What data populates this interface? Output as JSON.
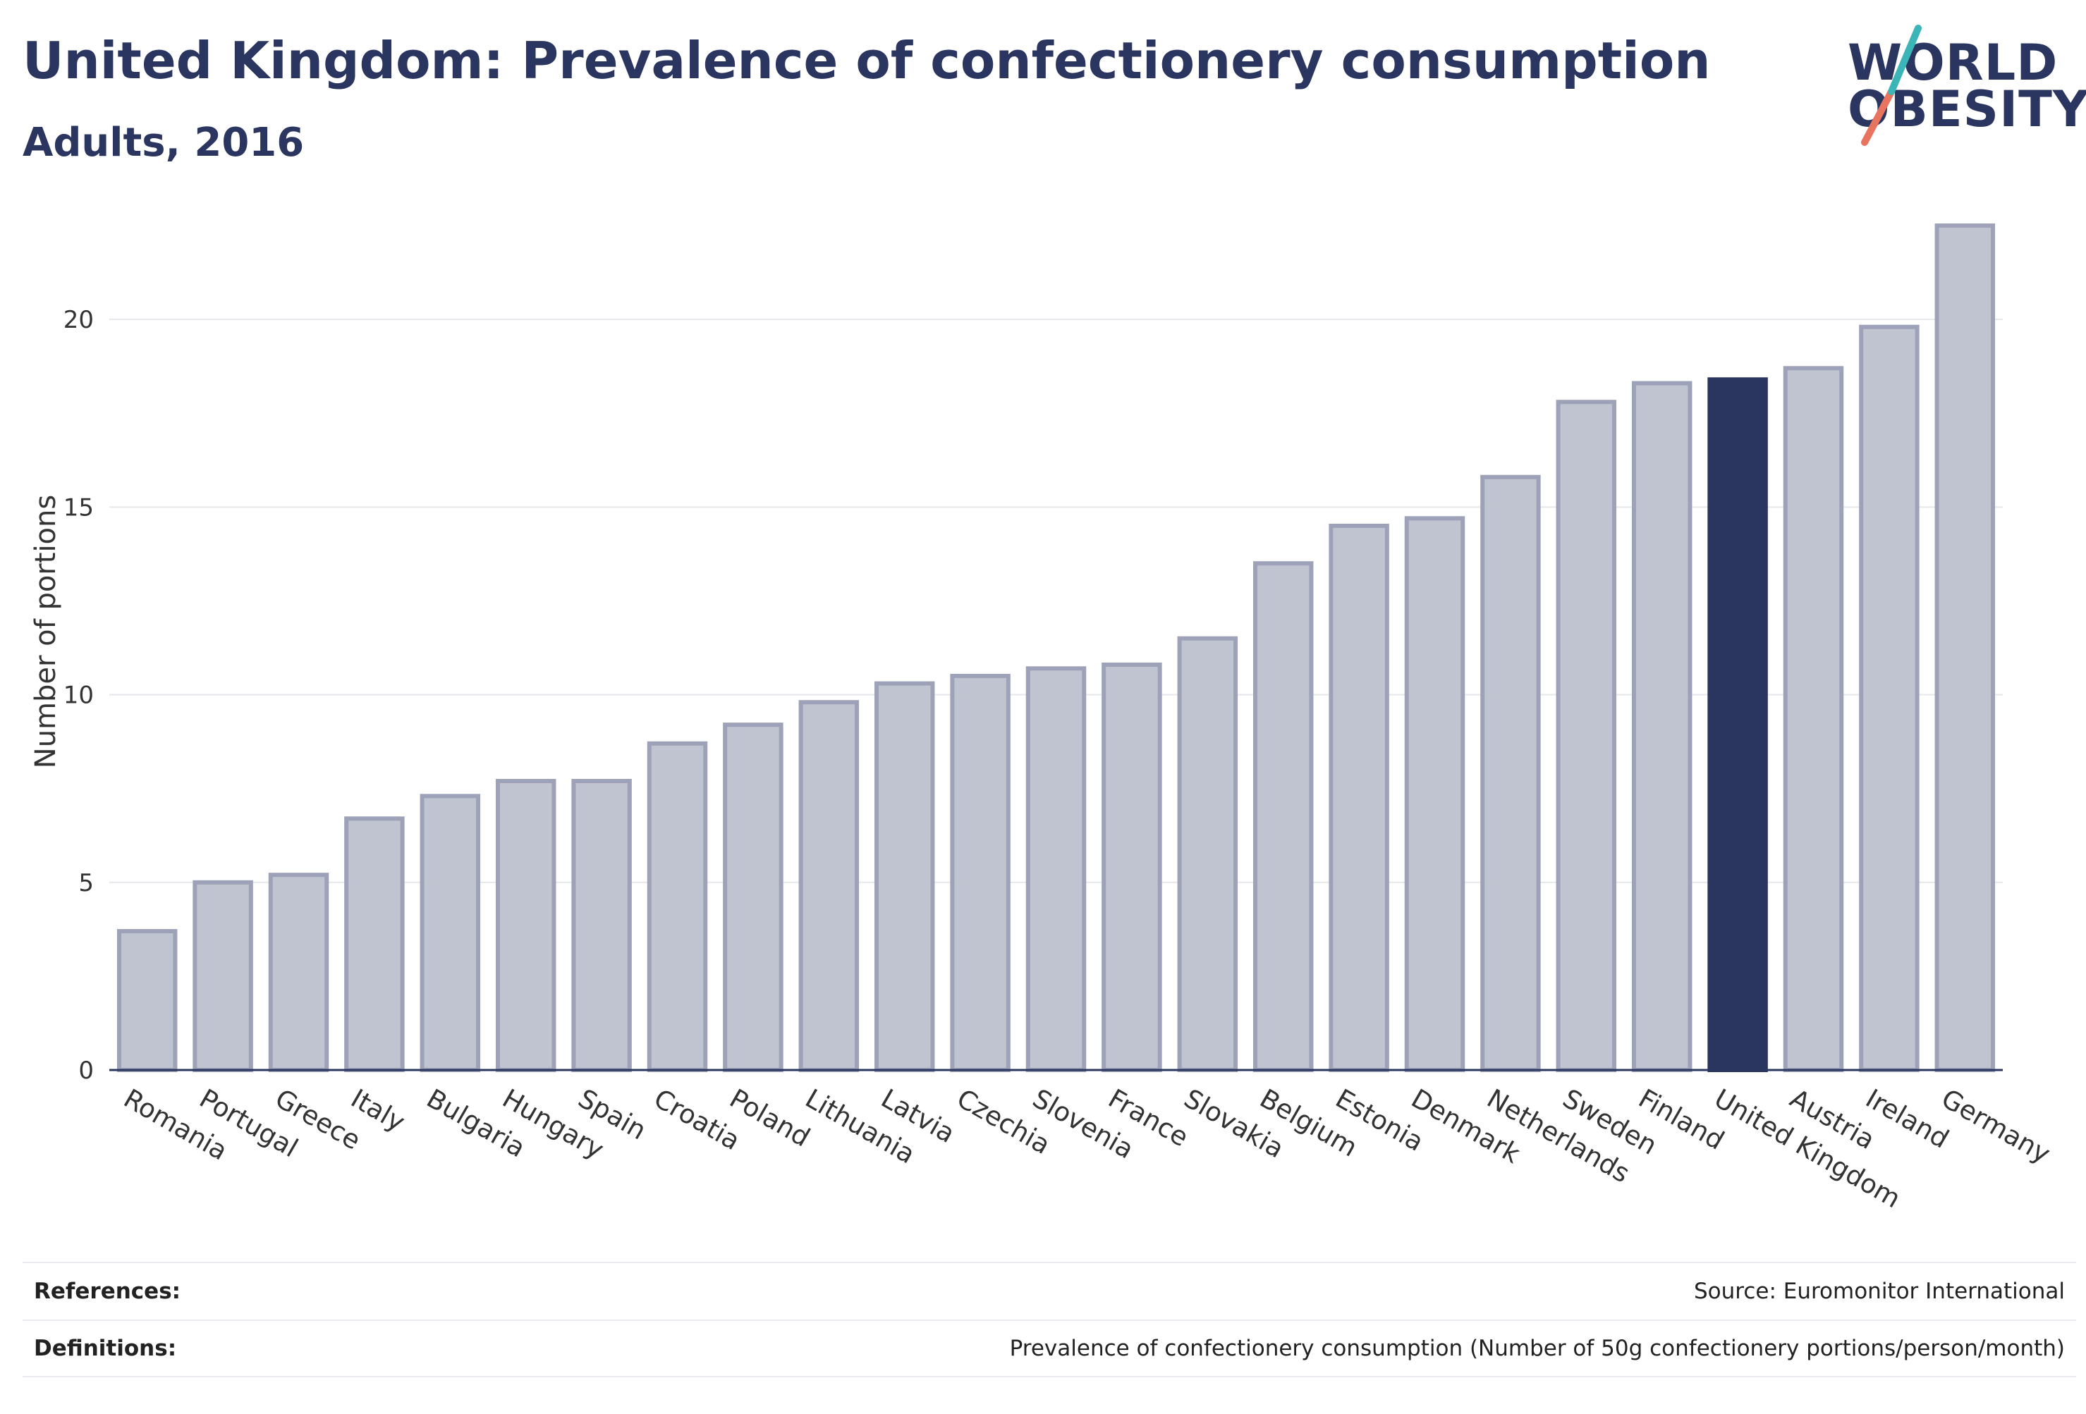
{
  "header": {
    "title": "United Kingdom: Prevalence of confectionery consumption",
    "subtitle": "Adults, 2016"
  },
  "logo": {
    "line1": "WORLD",
    "line2": "OBESITY"
  },
  "chart_data": {
    "type": "bar",
    "title": "United Kingdom: Prevalence of confectionery consumption",
    "subtitle": "Adults, 2016",
    "xlabel": "",
    "ylabel": "Number of portions",
    "ylim": [
      0,
      22.5
    ],
    "yticks": [
      0,
      5,
      10,
      15,
      20
    ],
    "grid": true,
    "highlight": "United Kingdom",
    "colors": {
      "bar": "#c0c3d0",
      "bar_border": "#9da2b8",
      "highlight": "#2a3560",
      "grid": "#e6e7eb",
      "axis": "#2a3560"
    },
    "categories": [
      "Romania",
      "Portugal",
      "Greece",
      "Italy",
      "Bulgaria",
      "Hungary",
      "Spain",
      "Croatia",
      "Poland",
      "Lithuania",
      "Latvia",
      "Czechia",
      "Slovenia",
      "France",
      "Slovakia",
      "Belgium",
      "Estonia",
      "Denmark",
      "Netherlands",
      "Sweden",
      "Finland",
      "United Kingdom",
      "Austria",
      "Ireland",
      "Germany"
    ],
    "values": [
      3.7,
      5.0,
      5.2,
      6.7,
      7.3,
      7.7,
      7.7,
      8.7,
      9.2,
      9.8,
      10.3,
      10.5,
      10.7,
      10.8,
      11.5,
      13.5,
      14.5,
      14.7,
      15.8,
      17.8,
      18.3,
      18.4,
      18.7,
      19.8,
      22.5
    ]
  },
  "footer": {
    "references_label": "References:",
    "references_value": "Source: Euromonitor International",
    "definitions_label": "Definitions:",
    "definitions_value": "Prevalence of confectionery consumption (Number of 50g confectionery portions/person/month)"
  }
}
